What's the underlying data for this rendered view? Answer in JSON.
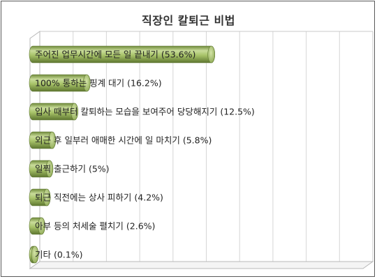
{
  "chart_data": {
    "type": "bar",
    "orientation": "horizontal",
    "title": "직장인 칼퇴근 비법",
    "categories": [
      "주어진 업무시간에 모든 일 끝내기",
      "100% 통하는 핑계 대기",
      "입사 때부터 칼퇴하는 모습을 보여주어 당당해지기",
      "외근 후 일부러 애매한 시간에 일 마치기",
      "일찍 출근하기",
      "퇴근 직전에는 상사 피하기",
      "아부 등의 처세술 펼치기",
      "기타"
    ],
    "values": [
      53.6,
      16.2,
      12.5,
      5.8,
      5,
      4.2,
      2.6,
      0.1
    ],
    "labels": [
      "주어진 업무시간에 모든 일 끝내기 (53.6%)",
      "100% 통하는 핑계 대기 (16.2%)",
      "입사 때부터 칼퇴하는 모습을 보여주어 당당해지기 (12.5%)",
      "외근 후 일부러 애매한 시간에 일 마치기 (5.8%)",
      "일찍 출근하기 (5%)",
      "퇴근 직전에는 상사 피하기 (4.2%)",
      "아부 등의 처세술 펼치기 (2.6%)",
      "기타 (0.1%)"
    ],
    "xlim": [
      0,
      100
    ],
    "grid": true,
    "style": "3d-cylinder",
    "bar_color": "#9bbb59",
    "legend": "none"
  }
}
